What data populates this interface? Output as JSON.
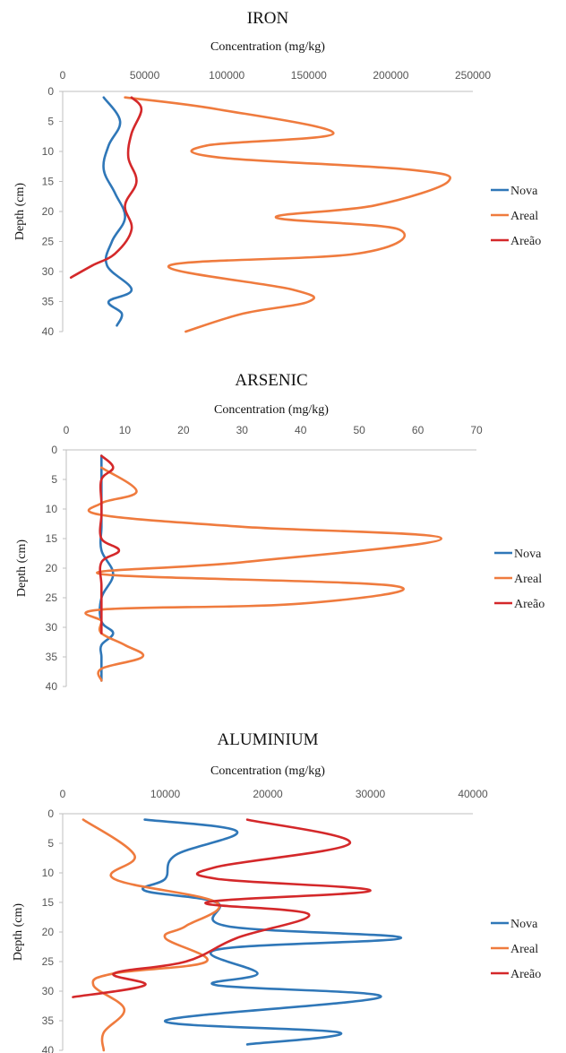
{
  "chart_data": [
    {
      "type": "line",
      "title": "IRON",
      "xlabel": "Concentration (mg/kg)",
      "ylabel": "Depth (cm)",
      "xlim": [
        0,
        250000
      ],
      "ylim": [
        0,
        40
      ],
      "xticks": [
        "0",
        "50000",
        "100000",
        "150000",
        "200000",
        "250000"
      ],
      "yticks": [
        "0",
        "5",
        "10",
        "15",
        "20",
        "25",
        "30",
        "35",
        "40"
      ],
      "legend_position": "right",
      "series": [
        {
          "name": "Nova",
          "color": "#2f77b8",
          "points": [
            [
              25000,
              1
            ],
            [
              35000,
              5
            ],
            [
              28000,
              9
            ],
            [
              25000,
              13
            ],
            [
              32000,
              17
            ],
            [
              38000,
              21
            ],
            [
              30000,
              25
            ],
            [
              27000,
              29
            ],
            [
              42000,
              33
            ],
            [
              28000,
              35
            ],
            [
              36000,
              37
            ],
            [
              33000,
              39
            ]
          ]
        },
        {
          "name": "Areal",
          "color": "#ef7b3e",
          "points": [
            [
              38000,
              1
            ],
            [
              95000,
              3
            ],
            [
              165000,
              7
            ],
            [
              88000,
              9
            ],
            [
              95000,
              11
            ],
            [
              210000,
              13
            ],
            [
              235000,
              15
            ],
            [
              190000,
              19
            ],
            [
              130000,
              21
            ],
            [
              205000,
              23
            ],
            [
              180000,
              27
            ],
            [
              65000,
              29
            ],
            [
              140000,
              33
            ],
            [
              150000,
              35
            ],
            [
              110000,
              37
            ],
            [
              75000,
              40
            ]
          ]
        },
        {
          "name": "Areão",
          "color": "#d4282a",
          "points": [
            [
              42000,
              1
            ],
            [
              48000,
              3
            ],
            [
              42000,
              7
            ],
            [
              40000,
              11
            ],
            [
              45000,
              15
            ],
            [
              38000,
              19
            ],
            [
              42000,
              23
            ],
            [
              32000,
              27
            ],
            [
              18000,
              29
            ],
            [
              5000,
              31
            ]
          ]
        }
      ]
    },
    {
      "type": "line",
      "title": "ARSENIC",
      "xlabel": "Concentration (mg/kg)",
      "ylabel": "Depth (cm)",
      "xlim": [
        0,
        70
      ],
      "ylim": [
        0,
        40
      ],
      "xticks": [
        "0",
        "10",
        "20",
        "30",
        "40",
        "50",
        "60",
        "70"
      ],
      "yticks": [
        "0",
        "5",
        "10",
        "15",
        "20",
        "25",
        "30",
        "35",
        "40"
      ],
      "legend_position": "right",
      "series": [
        {
          "name": "Nova",
          "color": "#2f77b8",
          "points": [
            [
              6,
              1
            ],
            [
              6,
              5
            ],
            [
              6,
              9
            ],
            [
              6,
              13
            ],
            [
              6,
              17
            ],
            [
              8,
              21
            ],
            [
              6,
              25
            ],
            [
              6,
              29
            ],
            [
              8,
              31
            ],
            [
              6,
              33
            ],
            [
              6,
              35
            ],
            [
              6,
              37
            ],
            [
              6,
              39
            ]
          ]
        },
        {
          "name": "Areal",
          "color": "#ef7b3e",
          "points": [
            [
              6,
              3
            ],
            [
              12,
              7
            ],
            [
              6,
              9
            ],
            [
              6,
              11
            ],
            [
              30,
              13
            ],
            [
              64,
              15
            ],
            [
              30,
              19
            ],
            [
              6,
              21
            ],
            [
              56,
              23
            ],
            [
              40,
              26
            ],
            [
              6,
              27
            ],
            [
              6,
              29
            ],
            [
              6,
              31
            ],
            [
              10,
              33
            ],
            [
              13,
              35
            ],
            [
              6,
              37
            ],
            [
              6,
              39
            ]
          ]
        },
        {
          "name": "Areão",
          "color": "#d4282a",
          "points": [
            [
              6,
              1
            ],
            [
              8,
              3
            ],
            [
              6,
              5
            ],
            [
              6,
              9
            ],
            [
              6,
              11
            ],
            [
              6,
              15
            ],
            [
              9,
              17
            ],
            [
              6,
              19
            ],
            [
              6,
              23
            ],
            [
              6,
              27
            ],
            [
              6,
              31
            ]
          ]
        }
      ]
    },
    {
      "type": "line",
      "title": "ALUMINIUM",
      "xlabel": "Concentration (mg/kg)",
      "ylabel": "Depth (cm)",
      "xlim": [
        0,
        40000
      ],
      "ylim": [
        0,
        40
      ],
      "xticks": [
        "0",
        "10000",
        "20000",
        "30000",
        "40000"
      ],
      "yticks": [
        "0",
        "5",
        "10",
        "15",
        "20",
        "25",
        "30",
        "35",
        "40"
      ],
      "legend_position": "right",
      "series": [
        {
          "name": "Nova",
          "color": "#2f77b8",
          "points": [
            [
              8000,
              1
            ],
            [
              17000,
              3
            ],
            [
              11000,
              7
            ],
            [
              10000,
              11
            ],
            [
              8000,
              13
            ],
            [
              15000,
              15
            ],
            [
              16000,
              19
            ],
            [
              33000,
              21
            ],
            [
              15000,
              23
            ],
            [
              19000,
              27
            ],
            [
              15000,
              29
            ],
            [
              31000,
              31
            ],
            [
              10000,
              35
            ],
            [
              27000,
              37
            ],
            [
              18000,
              39
            ]
          ]
        },
        {
          "name": "Areal",
          "color": "#ef7b3e",
          "points": [
            [
              2000,
              1
            ],
            [
              7000,
              7
            ],
            [
              5000,
              11
            ],
            [
              15000,
              15
            ],
            [
              12000,
              19
            ],
            [
              10000,
              21
            ],
            [
              14000,
              25
            ],
            [
              5000,
              27
            ],
            [
              3000,
              29
            ],
            [
              6000,
              33
            ],
            [
              4000,
              37
            ],
            [
              4000,
              40
            ]
          ]
        },
        {
          "name": "Areão",
          "color": "#d4282a",
          "points": [
            [
              18000,
              1
            ],
            [
              28000,
              5
            ],
            [
              15000,
              9
            ],
            [
              15000,
              11
            ],
            [
              30000,
              13
            ],
            [
              14000,
              15
            ],
            [
              24000,
              17
            ],
            [
              17000,
              21
            ],
            [
              12000,
              25
            ],
            [
              5000,
              27
            ],
            [
              8000,
              29
            ],
            [
              1000,
              31
            ]
          ]
        }
      ]
    }
  ]
}
